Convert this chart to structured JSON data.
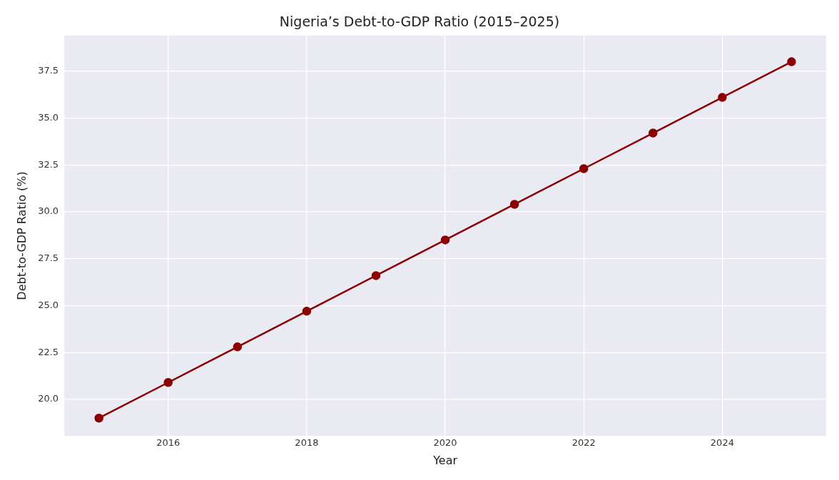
{
  "chart_data": {
    "type": "line",
    "title": "Nigeria’s Debt-to-GDP Ratio (2015–2025)",
    "xlabel": "Year",
    "ylabel": "Debt-to-GDP Ratio (%)",
    "x": [
      2015,
      2016,
      2017,
      2018,
      2019,
      2020,
      2021,
      2022,
      2023,
      2024,
      2025
    ],
    "series": [
      {
        "color": "#8b0000",
        "values": [
          19.0,
          20.9,
          22.8,
          24.7,
          26.6,
          28.5,
          30.4,
          32.3,
          34.2,
          36.1,
          38.0
        ]
      }
    ],
    "xlim": [
      2014.5,
      2025.5
    ],
    "xticks": [
      2016,
      2018,
      2020,
      2022,
      2024
    ],
    "ylim": [
      18.05,
      39.4
    ],
    "yticks": [
      {
        "value": 20,
        "label": "20.0"
      },
      {
        "value": 22.5,
        "label": "22.5"
      },
      {
        "value": 25,
        "label": "25.0"
      },
      {
        "value": 27.5,
        "label": "27.5"
      },
      {
        "value": 30,
        "label": "30.0"
      },
      {
        "value": 32.5,
        "label": "32.5"
      },
      {
        "value": 35,
        "label": "35.0"
      },
      {
        "value": 37.5,
        "label": "37.5"
      }
    ],
    "grid": true,
    "legend": false,
    "marker": "circle",
    "line_style": "solid"
  }
}
